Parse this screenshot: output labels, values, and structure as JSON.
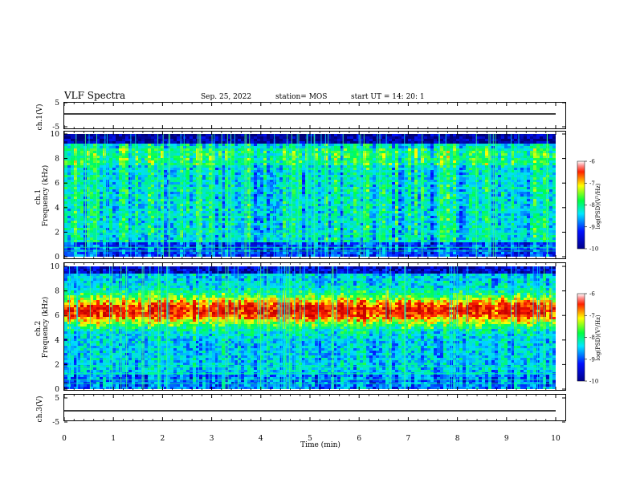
{
  "header": {
    "title": "VLF Spectra",
    "date": "Sep. 25, 2022",
    "station": "station= MOS",
    "start": "start  UT =   14: 20: 1"
  },
  "chart_data": [
    {
      "type": "line",
      "name": "ch1-waveform",
      "ylabel": "ch.1(V)",
      "ylim": [
        -5,
        5
      ],
      "yticks": [
        "5",
        "-5"
      ],
      "baseline": 0
    },
    {
      "type": "heatmap",
      "name": "ch1-spectrogram",
      "ylabel": "ch.1\nFrequency (kHz)",
      "ylim": [
        0,
        10
      ],
      "yticks": [
        "0",
        "2",
        "4",
        "6",
        "8",
        "10"
      ],
      "xlim": [
        0,
        10
      ],
      "colorbar": {
        "label": "log(PSD)(V²/Hz)",
        "range": [
          -10,
          -6
        ],
        "ticks": [
          "-6",
          "-7",
          "-8",
          "-9",
          "-10"
        ]
      }
    },
    {
      "type": "heatmap",
      "name": "ch2-spectrogram",
      "ylabel": "ch.2\nFrequency (kHz)",
      "ylim": [
        0,
        10
      ],
      "yticks": [
        "0",
        "2",
        "4",
        "6",
        "8",
        "10"
      ],
      "xlim": [
        0,
        10
      ],
      "colorbar": {
        "label": "log(PSD)(V²/Hz)",
        "range": [
          -10,
          -6
        ],
        "ticks": [
          "-6",
          "-7",
          "-8",
          "-9",
          "-10"
        ]
      }
    },
    {
      "type": "line",
      "name": "ch3-waveform",
      "ylabel": "ch.3(V)",
      "ylim": [
        -5,
        5
      ],
      "yticks": [
        "5",
        "-5"
      ],
      "baseline": 0
    }
  ],
  "xaxis": {
    "label": "Time  (min)",
    "range": [
      0,
      10
    ],
    "ticks": [
      "0",
      "1",
      "2",
      "3",
      "4",
      "5",
      "6",
      "7",
      "8",
      "9",
      "10"
    ]
  },
  "colors": {
    "min": "#000080",
    "mid1": "#0050ff",
    "mid2": "#00e0ff",
    "mid3": "#00ff60",
    "mid4": "#ffff00",
    "max": "#ff0000"
  }
}
